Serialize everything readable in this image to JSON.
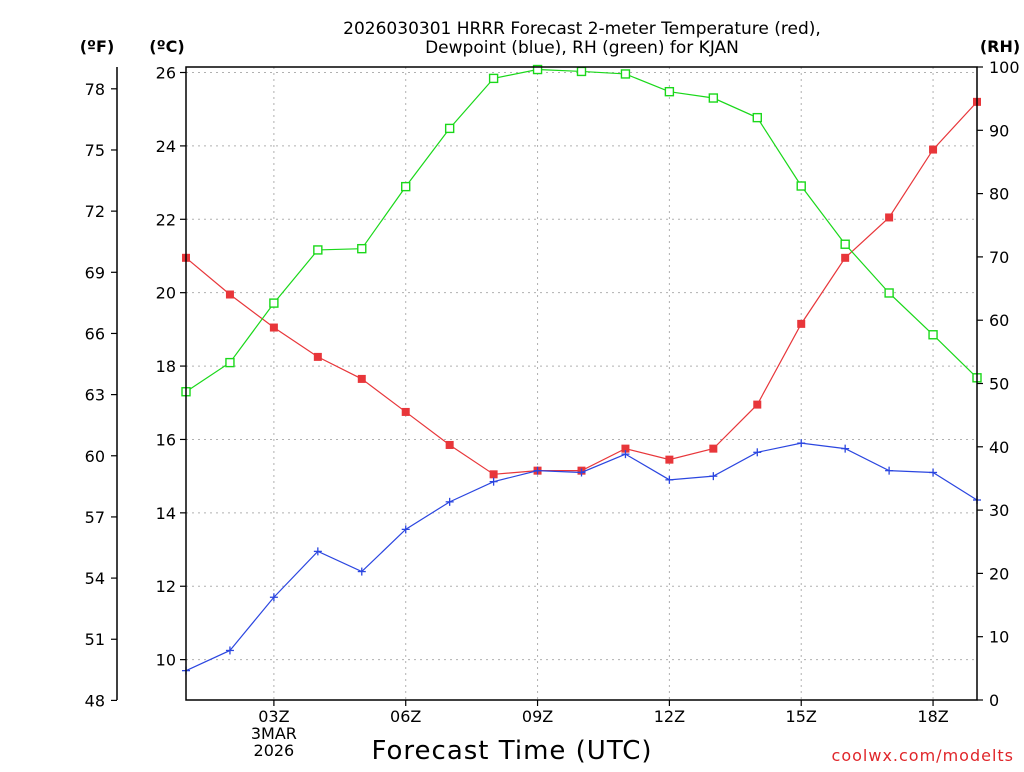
{
  "chart_data": {
    "type": "line",
    "title_lines": [
      "2026030301 HRRR Forecast 2-meter Temperature (red),",
      "Dewpoint (blue), RH (green) for KJAN"
    ],
    "xlabel": "Forecast Time (UTC)",
    "credit": "coolwx.com/modelts",
    "x": [
      1,
      2,
      3,
      4,
      5,
      6,
      7,
      8,
      9,
      10,
      11,
      12,
      13,
      14,
      15,
      16,
      17,
      18,
      19
    ],
    "x_range": [
      1,
      19
    ],
    "x_ticks": [
      {
        "x": 3,
        "lines": [
          "03Z",
          "3MAR",
          "2026"
        ]
      },
      {
        "x": 6,
        "lines": [
          "06Z"
        ]
      },
      {
        "x": 9,
        "lines": [
          "09Z"
        ]
      },
      {
        "x": 12,
        "lines": [
          "12Z"
        ]
      },
      {
        "x": 15,
        "lines": [
          "15Z"
        ]
      },
      {
        "x": 18,
        "lines": [
          "18Z"
        ]
      }
    ],
    "axes": {
      "fahrenheit": {
        "label": "(ºF)",
        "ticks": [
          48,
          51,
          54,
          57,
          60,
          63,
          66,
          69,
          72,
          75,
          78
        ]
      },
      "celsius": {
        "label": "(ºC)",
        "ylim": [
          8.9,
          26.15
        ],
        "ticks": [
          10,
          12,
          14,
          16,
          18,
          20,
          22,
          24,
          26
        ]
      },
      "rh": {
        "label": "(RH)",
        "ylim": [
          0,
          100
        ],
        "ticks": [
          0,
          10,
          20,
          30,
          40,
          50,
          60,
          70,
          80,
          90,
          100
        ]
      }
    },
    "series": [
      {
        "name": "Temperature",
        "axis": "celsius",
        "color": "#e8363a",
        "marker": "filled-square",
        "values": [
          20.95,
          19.95,
          19.05,
          18.25,
          17.65,
          16.75,
          15.85,
          15.05,
          15.15,
          15.15,
          15.75,
          15.45,
          15.75,
          16.95,
          19.15,
          20.95,
          22.05,
          23.9,
          25.2
        ]
      },
      {
        "name": "Dewpoint",
        "axis": "celsius",
        "color": "#2b46e0",
        "marker": "plus",
        "values": [
          9.7,
          10.25,
          11.7,
          12.95,
          12.4,
          13.55,
          14.3,
          14.85,
          15.15,
          15.1,
          15.6,
          14.9,
          15.0,
          15.65,
          15.9,
          15.75,
          15.15,
          15.1,
          14.35
        ]
      },
      {
        "name": "RH",
        "axis": "rh",
        "color": "#1ad81a",
        "marker": "open-square",
        "values": [
          48.7,
          53.3,
          62.7,
          71.1,
          71.3,
          81.1,
          90.3,
          98.2,
          99.6,
          99.3,
          98.9,
          96.1,
          95.1,
          92.0,
          81.2,
          72.0,
          64.3,
          57.7,
          50.9
        ]
      }
    ]
  }
}
